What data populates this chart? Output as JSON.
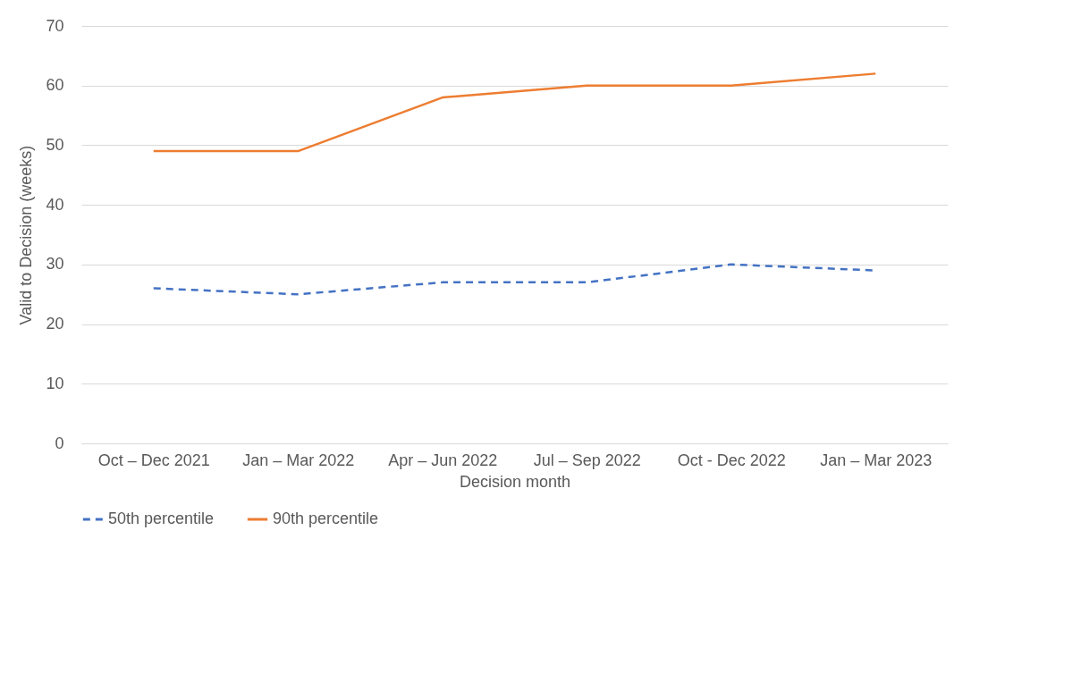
{
  "chart_data": {
    "type": "line",
    "xlabel": "Decision month",
    "ylabel": "Valid to Decision (weeks)",
    "categories": [
      "Oct – Dec 2021",
      "Jan – Mar 2022",
      "Apr – Jun 2022",
      "Jul – Sep 2022",
      "Oct - Dec 2022",
      "Jan – Mar 2023"
    ],
    "series": [
      {
        "name": "50th percentile",
        "color": "#4472c4",
        "line_style": "dashed",
        "values": [
          26,
          25,
          27,
          27,
          30,
          29
        ]
      },
      {
        "name": "90th percentile",
        "color": "#ed7d31",
        "line_style": "solid",
        "values": [
          49,
          49,
          58,
          60,
          60,
          62
        ]
      }
    ],
    "ylim": [
      0,
      70
    ],
    "yticks": [
      0,
      10,
      20,
      30,
      40,
      50,
      60,
      70
    ],
    "grid": "y",
    "legend": "bottom",
    "marker": "none"
  }
}
